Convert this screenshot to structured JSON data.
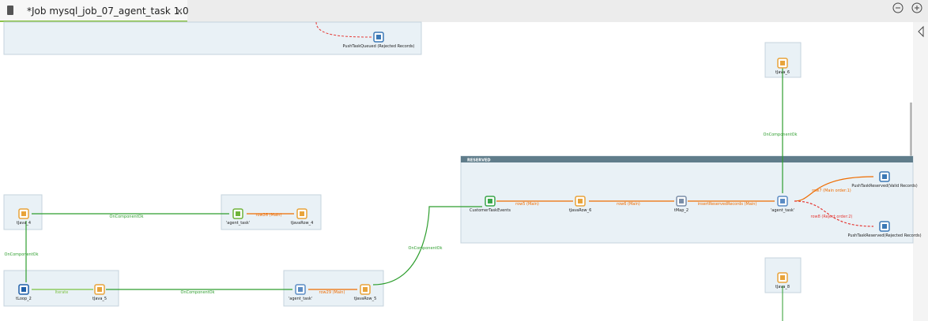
{
  "tab": {
    "title": "*Job mysql_job_07_agent_task 1.0"
  },
  "group": {
    "label": "RESERVED"
  },
  "nodes": [
    {
      "label": "PushTaskQueued (Rejected Records)"
    },
    {
      "label": "tJava_6"
    },
    {
      "label": "CustomerTaskEvents"
    },
    {
      "label": "tJavaRow_6"
    },
    {
      "label": "tMap_2"
    },
    {
      "label": "'agent_task'"
    },
    {
      "label": "PushTaskReserved(Valid Records)"
    },
    {
      "label": "PushTaskReserved(Rejected Records)"
    },
    {
      "label": "tJava_4"
    },
    {
      "label": "'agent_task'"
    },
    {
      "label": "tJavaRow_4"
    },
    {
      "label": "tLoop_2"
    },
    {
      "label": "tJava_5"
    },
    {
      "label": "'agent_task'"
    },
    {
      "label": "tJavaRow_5"
    },
    {
      "label": "tJava_8"
    }
  ],
  "connections": [
    {
      "label": "OnComponentOk"
    },
    {
      "label": "row5 (Main)"
    },
    {
      "label": "row6 (Main)"
    },
    {
      "label": "insertReservedRecords (Main)"
    },
    {
      "label": "row7 (Main order:1)"
    },
    {
      "label": "row8 (Reject order:2)"
    },
    {
      "label": "OnComponentOk"
    },
    {
      "label": "row26 (Main)"
    },
    {
      "label": "OnComponentOk"
    },
    {
      "label": "Iterate"
    },
    {
      "label": "OnComponentOk"
    },
    {
      "label": "row29 (Main)"
    },
    {
      "label": "OnComponentOk"
    }
  ]
}
